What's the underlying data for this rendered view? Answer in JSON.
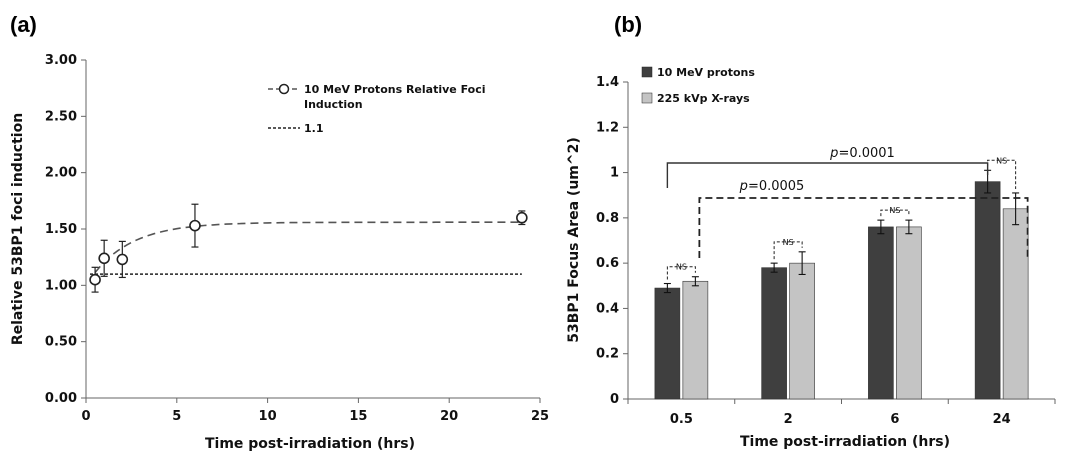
{
  "panels": {
    "a_label": "(a)",
    "b_label": "(b)"
  },
  "colors": {
    "protons": "#3f3f3f",
    "xrays": "#c4c4c4",
    "line": "#555555"
  },
  "chart_data": [
    {
      "type": "scatter",
      "title": "",
      "xlabel": "Time post-irradiation (hrs)",
      "ylabel": "Relative 53BP1 foci induction",
      "xlim": [
        0,
        25
      ],
      "ylim": [
        0,
        3
      ],
      "x_ticks": [
        "0",
        "5",
        "10",
        "15",
        "20",
        "25"
      ],
      "y_ticks": [
        "0.00",
        "0.50",
        "1.00",
        "1.50",
        "2.00",
        "2.50",
        "3.00"
      ],
      "grid": false,
      "legend_position": "top-right",
      "series": [
        {
          "name": "10 MeV Protons Relative Foci Induction",
          "line_label": "10 MeV Protons Relative Foci",
          "line_label2": "Induction",
          "style": "open circles with dashed fit",
          "x": [
            0.5,
            1,
            2,
            6,
            24
          ],
          "y": [
            1.05,
            1.24,
            1.23,
            1.53,
            1.6
          ],
          "err": [
            0.11,
            0.16,
            0.16,
            0.19,
            0.06
          ]
        },
        {
          "name": "1.1",
          "style": "dotted reference line",
          "x": [
            0,
            24
          ],
          "y": [
            1.1,
            1.1
          ]
        }
      ]
    },
    {
      "type": "bar",
      "title": "",
      "xlabel": "Time post-irradiation (hrs)",
      "ylabel": "53BP1 Focus Area (um^2)",
      "categories": [
        "0.5",
        "2",
        "6",
        "24"
      ],
      "ylim": [
        0,
        1.4
      ],
      "y_ticks": [
        "0",
        "0.2",
        "0.4",
        "0.6",
        "0.8",
        "1",
        "1.2",
        "1.4"
      ],
      "grid": false,
      "legend_position": "top-left",
      "series": [
        {
          "name": "10 MeV protons",
          "values": [
            0.49,
            0.58,
            0.76,
            0.96
          ],
          "err": [
            0.02,
            0.02,
            0.03,
            0.05
          ]
        },
        {
          "name": "225 kVp X-rays",
          "values": [
            0.52,
            0.6,
            0.76,
            0.84
          ],
          "err": [
            0.02,
            0.05,
            0.03,
            0.07
          ]
        }
      ],
      "annotations": {
        "ns": "NS",
        "p1_prefix": "p",
        "p1_value": "=0.0001",
        "p2_prefix": "p",
        "p2_value": "=0.0005"
      }
    }
  ]
}
